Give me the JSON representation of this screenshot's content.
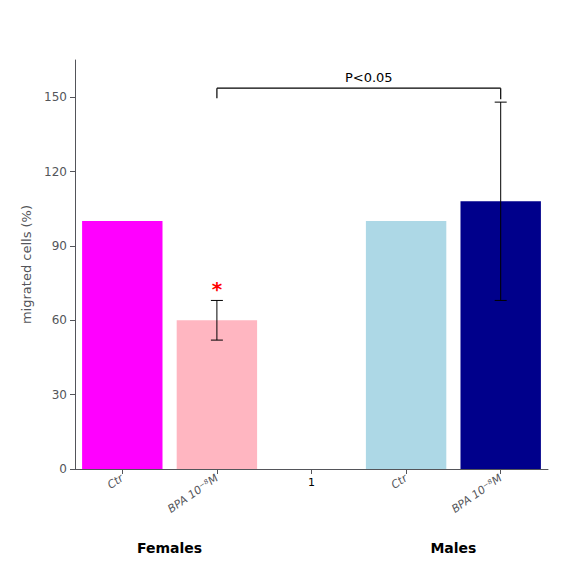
{
  "chart_data": {
    "type": "bar",
    "categories": [
      "Ctr",
      "BPA 10⁻⁸M",
      "Ctr",
      "BPA 10⁻⁸M"
    ],
    "group": [
      "Females",
      "Females",
      "Males",
      "Males"
    ],
    "values": [
      100,
      60,
      100,
      108
    ],
    "errors": [
      0,
      8,
      0,
      40
    ],
    "colors": [
      "#FF00FF",
      "#FFB6C1",
      "#ADD8E6",
      "#00008B"
    ],
    "ylabel": "migrated cells (%)",
    "ylim": [
      0,
      165
    ],
    "yticks": [
      0,
      30,
      60,
      90,
      120,
      150
    ],
    "grid": false,
    "asterisk": {
      "text": "*",
      "color": "#FF0000",
      "at": [
        "Females",
        "BPA 10⁻⁸M"
      ]
    },
    "significance": {
      "text": "P<0.05",
      "from": [
        "Females",
        "BPA 10⁻⁸M"
      ],
      "to": [
        "Males",
        "BPA 10⁻⁸M"
      ]
    },
    "annotations": [
      {
        "text": "1",
        "between": [
          "Females",
          "Males"
        ]
      }
    ]
  }
}
